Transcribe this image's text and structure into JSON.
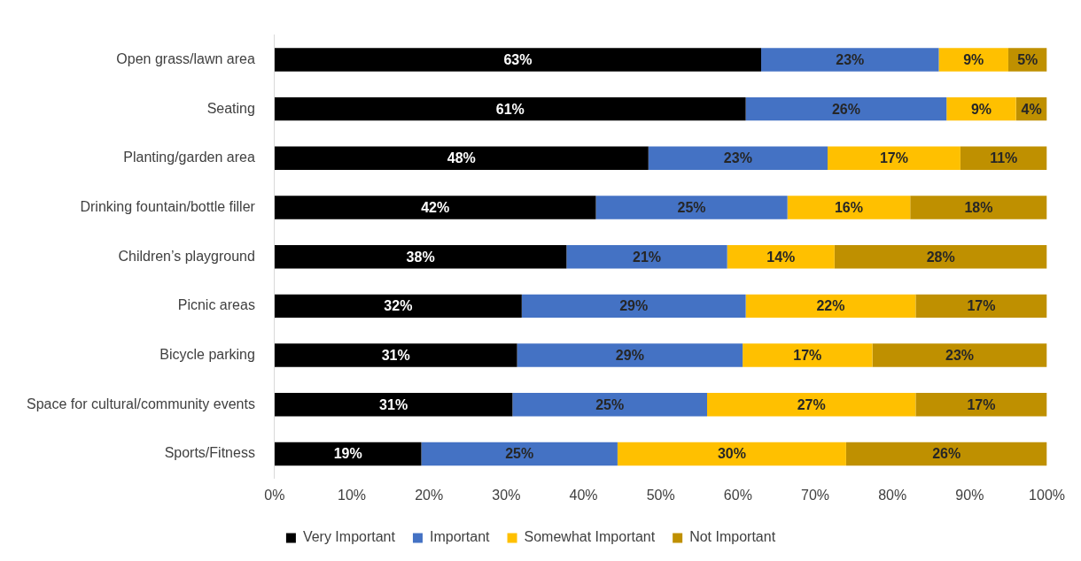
{
  "chart_data": {
    "type": "bar",
    "orientation": "horizontal",
    "stacked": true,
    "categories": [
      "Open grass/lawn area",
      "Seating",
      "Planting/garden area",
      "Drinking fountain/bottle filler",
      "Children’s playground",
      "Picnic areas",
      "Bicycle parking",
      "Space for cultural/community events",
      "Sports/Fitness"
    ],
    "series": [
      {
        "name": "Very Important",
        "color": "#000000",
        "values": [
          63,
          61,
          48.4,
          41.6,
          37.8,
          32,
          31.4,
          30.8,
          19
        ],
        "value_labels": [
          "63%",
          "61%",
          "48%",
          "42%",
          "38%",
          "32%",
          "31%",
          "31%",
          "19%"
        ]
      },
      {
        "name": "Important",
        "color": "#4472c4",
        "values": [
          23,
          26,
          23.2,
          24.8,
          20.8,
          29,
          29.2,
          25.2,
          25.4
        ],
        "value_labels": [
          "23%",
          "26%",
          "23%",
          "25%",
          "21%",
          "29%",
          "29%",
          "25%",
          "25%"
        ]
      },
      {
        "name": "Somewhat Important",
        "color": "#ffc000",
        "values": [
          9,
          9,
          17.2,
          15.9,
          13.9,
          22,
          16.8,
          27,
          29.6
        ],
        "value_labels": [
          "9%",
          "9%",
          "17%",
          "16%",
          "14%",
          "22%",
          "17%",
          "27%",
          "30%"
        ]
      },
      {
        "name": "Not Important",
        "color": "#bf9000",
        "values": [
          5,
          4,
          11.2,
          17.7,
          27.5,
          17,
          22.6,
          17,
          26
        ],
        "value_labels": [
          "5%",
          "4%",
          "11%",
          "18%",
          "28%",
          "17%",
          "23%",
          "17%",
          "26%"
        ]
      }
    ],
    "xlim": [
      0,
      100
    ],
    "xticks": [
      {
        "value": 0,
        "label": "0%"
      },
      {
        "value": 10,
        "label": "10%"
      },
      {
        "value": 20,
        "label": "20%"
      },
      {
        "value": 30,
        "label": "30%"
      },
      {
        "value": 40,
        "label": "40%"
      },
      {
        "value": 50,
        "label": "50%"
      },
      {
        "value": 60,
        "label": "60%"
      },
      {
        "value": 70,
        "label": "70%"
      },
      {
        "value": 80,
        "label": "80%"
      },
      {
        "value": 90,
        "label": "90%"
      },
      {
        "value": 100,
        "label": "100%"
      }
    ],
    "grid": false,
    "legend": "bottom"
  }
}
